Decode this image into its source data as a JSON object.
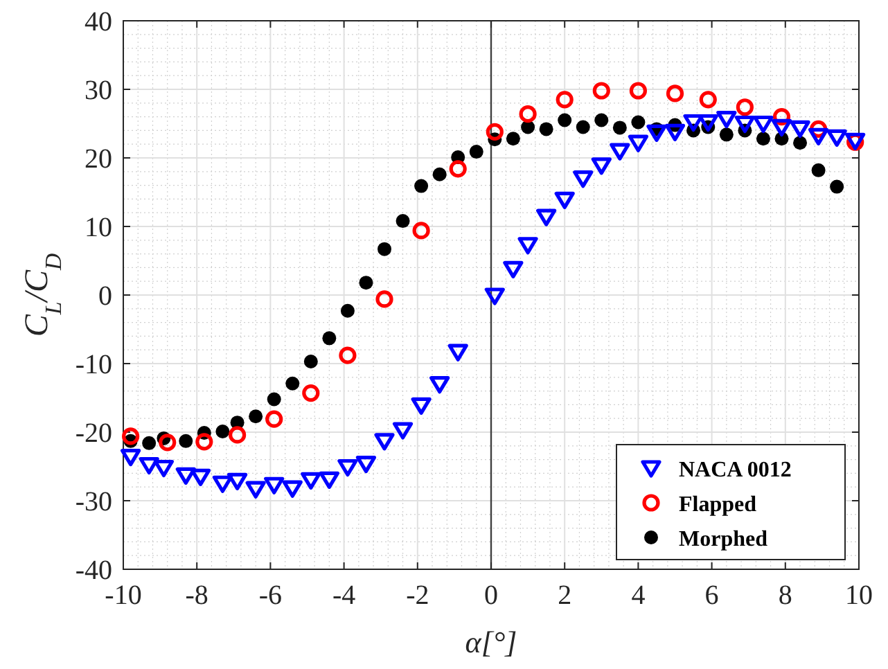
{
  "chart_data": {
    "type": "scatter",
    "xlabel": "α[°]",
    "ylabel": "C$_{L}$/C$_{D}$",
    "xlim": [
      -10,
      10
    ],
    "ylim": [
      -40,
      40
    ],
    "xticks": [
      -10,
      -8,
      -6,
      -4,
      -2,
      0,
      2,
      4,
      6,
      8,
      10
    ],
    "yticks": [
      -40,
      -30,
      -20,
      -10,
      0,
      10,
      20,
      30,
      40
    ],
    "grid": true,
    "legend": "bottom right",
    "ref_lines": [
      {
        "axis": "x",
        "value": 0,
        "color": "#404040"
      }
    ],
    "series": [
      {
        "name": "NACA 0012",
        "color": "#0000ff",
        "marker": "triangle",
        "x": [
          -9.8,
          -9.3,
          -8.9,
          -8.3,
          -7.9,
          -7.3,
          -6.9,
          -6.4,
          -5.9,
          -5.4,
          -4.9,
          -4.4,
          -3.9,
          -3.4,
          -2.9,
          -2.4,
          -1.9,
          -1.4,
          -0.9,
          0.1,
          0.6,
          1,
          1.5,
          2,
          2.5,
          3,
          3.5,
          4,
          4.5,
          5,
          5.5,
          5.9,
          6.4,
          6.9,
          7.4,
          7.9,
          8.4,
          8.9,
          9.4,
          9.9
        ],
        "values": [
          -23.6,
          -24.8,
          -25.2,
          -26.3,
          -26.5,
          -27.5,
          -27.1,
          -28.3,
          -27.7,
          -28.2,
          -27,
          -26.9,
          -25.1,
          -24.6,
          -21.3,
          -19.7,
          -16.1,
          -13,
          -8.3,
          -0.1,
          3.8,
          7.3,
          11.4,
          13.9,
          17,
          18.9,
          21,
          22.2,
          23.7,
          23.8,
          25.2,
          25.2,
          25.7,
          25,
          25,
          24.5,
          24.3,
          23.2,
          23,
          22.5
        ]
      },
      {
        "name": "Flapped",
        "color": "#ff0000",
        "marker": "circle",
        "x": [
          -9.8,
          -8.8,
          -7.8,
          -6.9,
          -5.9,
          -4.9,
          -3.9,
          -2.9,
          -1.9,
          -0.9,
          0.1,
          1,
          2,
          3,
          4,
          5,
          5.9,
          6.9,
          7.9,
          8.9,
          9.9
        ],
        "values": [
          -20.6,
          -21.5,
          -21.4,
          -20.4,
          -18.1,
          -14.3,
          -8.8,
          -0.6,
          9.4,
          18.4,
          23.8,
          26.4,
          28.5,
          29.8,
          29.8,
          29.4,
          28.5,
          27.4,
          26,
          24.2,
          22.3
        ]
      },
      {
        "name": "Morphed",
        "color": "#000000",
        "marker": "circle",
        "x": [
          -9.8,
          -9.3,
          -8.9,
          -8.3,
          -7.8,
          -7.3,
          -6.9,
          -6.4,
          -5.9,
          -5.4,
          -4.9,
          -4.4,
          -3.9,
          -3.4,
          -2.9,
          -2.4,
          -1.9,
          -1.4,
          -0.9,
          -0.4,
          0.1,
          0.6,
          1,
          1.5,
          2,
          2.5,
          3,
          3.5,
          4,
          4.5,
          5,
          5.5,
          5.9,
          6.4,
          6.9,
          7.4,
          7.9,
          8.4,
          8.9,
          9.4
        ],
        "values": [
          -21.3,
          -21.6,
          -20.9,
          -21.3,
          -20.1,
          -19.9,
          -18.6,
          -17.7,
          -15.2,
          -12.9,
          -9.7,
          -6.3,
          -2.3,
          1.8,
          6.7,
          10.8,
          15.9,
          17.6,
          20.1,
          20.9,
          22.7,
          22.8,
          24.5,
          24.2,
          25.5,
          24.5,
          25.5,
          24.4,
          25.2,
          24.2,
          24.8,
          24,
          24.5,
          23.4,
          24,
          22.8,
          22.8,
          22.2,
          18.2,
          15.8
        ]
      }
    ]
  }
}
